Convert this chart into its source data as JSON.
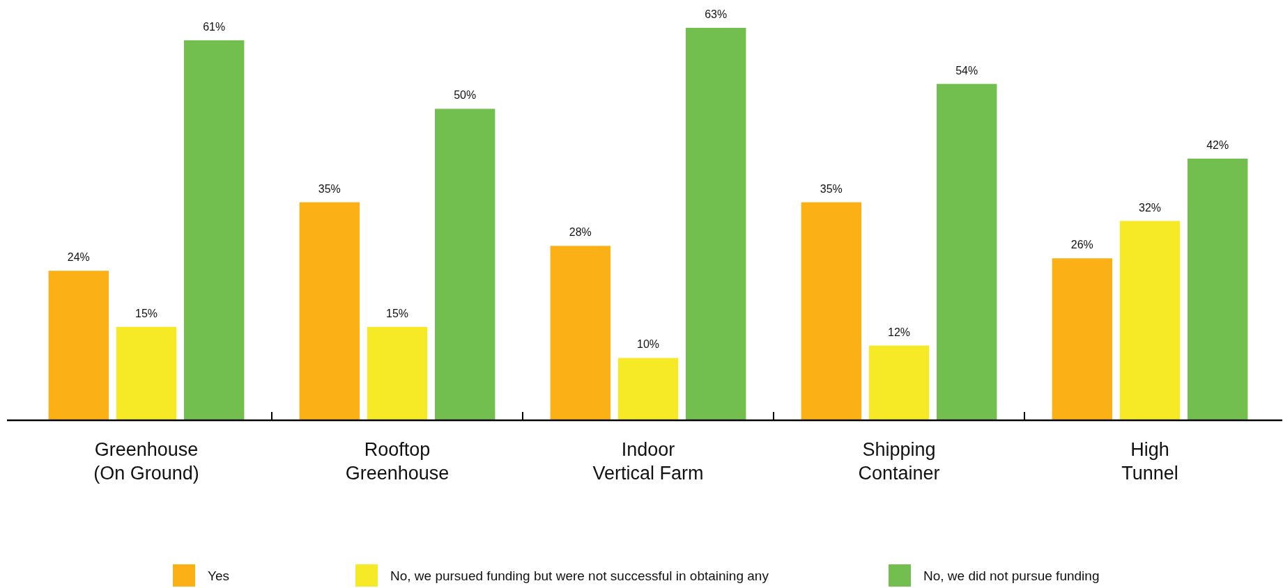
{
  "chart_data": {
    "type": "bar",
    "categories": [
      "Greenhouse (On Ground)",
      "Rooftop Greenhouse",
      "Indoor Vertical Farm",
      "Shipping Container",
      "High Tunnel"
    ],
    "series": [
      {
        "name": "Yes",
        "color": "#fbb116",
        "values": [
          24,
          35,
          28,
          35,
          26
        ],
        "value_labels": [
          "24%",
          "35%",
          "28%",
          "35%",
          "26%"
        ]
      },
      {
        "name": "No, we pursued funding but were not successful in obtaining any",
        "color": "#f6e926",
        "values": [
          15,
          15,
          10,
          12,
          32
        ],
        "value_labels": [
          "15%",
          "15%",
          "10%",
          "12%",
          "32%"
        ]
      },
      {
        "name": "No, we did not pursue funding",
        "color": "#72bf4f",
        "values": [
          61,
          50,
          63,
          54,
          42
        ],
        "value_labels": [
          "61%",
          "50%",
          "63%",
          "54%",
          "42%"
        ]
      }
    ],
    "legend": "bottom"
  }
}
